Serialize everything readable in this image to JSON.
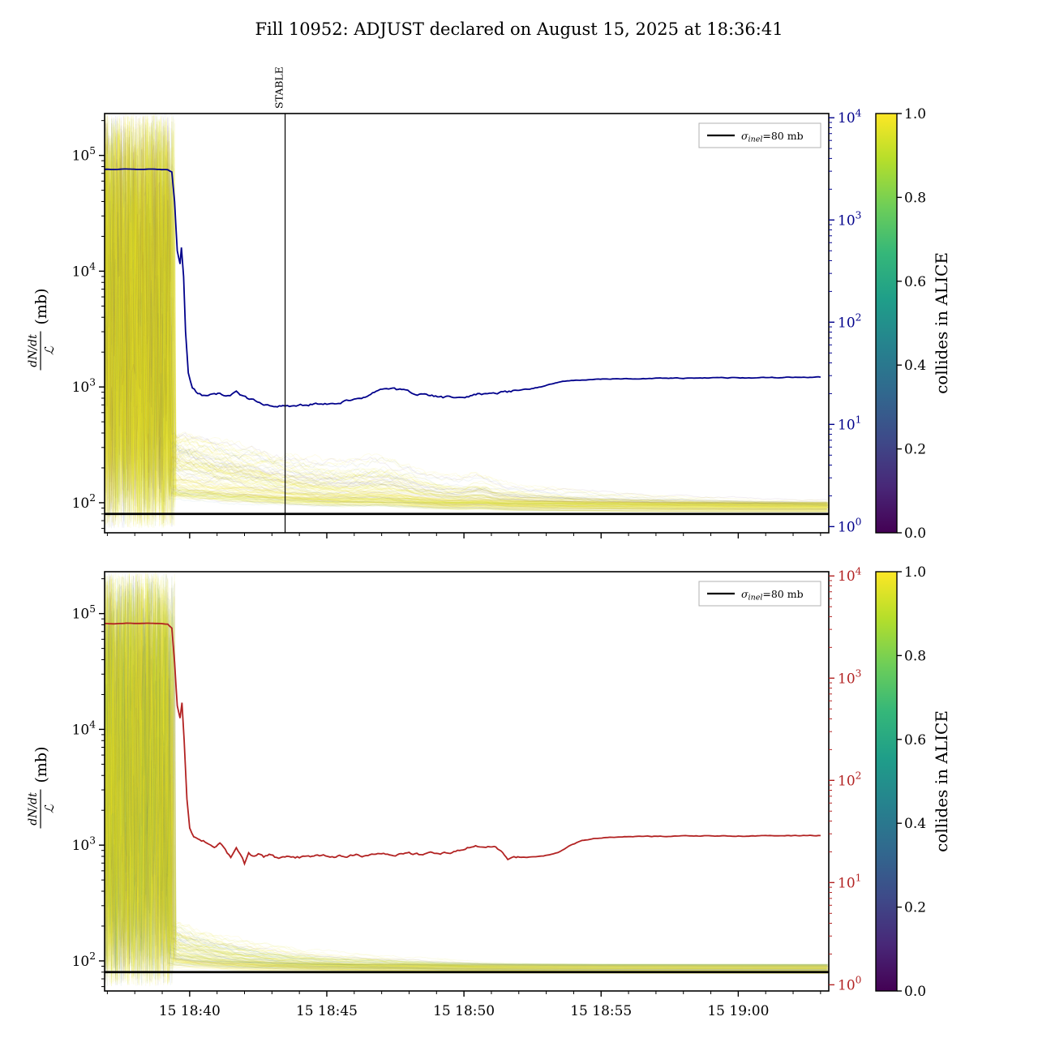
{
  "title": "Fill 10952: ADJUST declared on August 15, 2025 at 18:36:41",
  "chart_data": [
    {
      "id": "top-panel",
      "type": "line",
      "ylabel": {
        "numerator": "dN/dt",
        "denominator": "ℒ",
        "unit": "(mb)"
      },
      "y_axis": {
        "scale": "log",
        "min": 55,
        "max": 230000,
        "tick_exponents": [
          2,
          3,
          4,
          5
        ]
      },
      "right_axis": {
        "scale": "log",
        "min": 0.87,
        "max": 11000,
        "tick_exponents": [
          0,
          1,
          2,
          3,
          4
        ],
        "color": "#00008b"
      },
      "x_axis": {
        "min": 0.9,
        "max": 27.3,
        "major_ticks": [
          {
            "t": 4,
            "label": "15 18:40"
          },
          {
            "t": 9,
            "label": "15 18:45"
          },
          {
            "t": 14,
            "label": "15 18:50"
          },
          {
            "t": 19,
            "label": "15 18:55"
          },
          {
            "t": 24,
            "label": "15 19:00"
          }
        ],
        "minor_step": 1
      },
      "legend": {
        "symbol": "σ",
        "subscript": "inel",
        "text": "=80 mb"
      },
      "sigma_line_mb": 80,
      "stable_marker": {
        "t": 7.48,
        "label": "STABLE"
      },
      "main_line": {
        "color": "#00008b",
        "x": [
          0.9,
          1.3,
          1.7,
          2.1,
          2.5,
          2.9,
          3.2,
          3.35,
          3.45,
          3.55,
          3.65,
          3.7,
          3.78,
          3.85,
          3.95,
          4.1,
          4.3,
          4.6,
          4.9,
          5.1,
          5.4,
          5.7,
          5.9,
          6.1,
          6.4,
          6.7,
          7.0,
          7.4,
          7.8,
          8.2,
          8.6,
          9.0,
          9.5,
          10.0,
          10.4,
          10.8,
          11.1,
          11.4,
          11.8,
          12.1,
          12.5,
          12.9,
          13.3,
          13.7,
          14.1,
          14.5,
          15.0,
          15.5,
          16.0,
          16.4,
          16.8,
          17.2,
          17.6,
          18.0,
          18.6,
          19.2,
          20.0,
          21.0,
          22.0,
          23.0,
          24.0,
          25.0,
          26.0,
          27.0
        ],
        "y": [
          76000,
          75500,
          76500,
          75800,
          76200,
          75600,
          75200,
          72000,
          40000,
          15000,
          11500,
          16000,
          9000,
          3000,
          1300,
          1000,
          880,
          820,
          860,
          880,
          850,
          900,
          830,
          790,
          760,
          720,
          690,
          680,
          690,
          700,
          710,
          720,
          740,
          770,
          820,
          900,
          950,
          960,
          930,
          900,
          860,
          830,
          810,
          820,
          840,
          860,
          880,
          900,
          930,
          960,
          1000,
          1060,
          1110,
          1140,
          1160,
          1170,
          1180,
          1185,
          1190,
          1195,
          1200,
          1205,
          1210,
          1215
        ]
      },
      "bunch_lines": {
        "count": 150,
        "yellow_fraction": 0.8,
        "drop_time": 3.2,
        "pre_log_min": 1.78,
        "pre_log_max": 5.36,
        "post_floor": [
          82,
          100
        ],
        "post_amp_max": 330,
        "tau_min": 2.5,
        "tau_max": 7.5,
        "bumps": [
          {
            "t": 11.2,
            "w": 1.3,
            "a": 0.5
          },
          {
            "t": 14.6,
            "w": 0.55,
            "a": 0.4
          }
        ],
        "seed": 7
      },
      "colorbar": {
        "label": "collides in ALICE",
        "ticks": [
          "0.0",
          "0.2",
          "0.4",
          "0.6",
          "0.8",
          "1.0"
        ],
        "cmap": "viridis"
      }
    },
    {
      "id": "bottom-panel",
      "type": "line",
      "ylabel": {
        "numerator": "dN/dt",
        "denominator": "ℒ",
        "unit": "(mb)"
      },
      "y_axis": {
        "scale": "log",
        "min": 55,
        "max": 230000,
        "tick_exponents": [
          2,
          3,
          4,
          5
        ]
      },
      "right_axis": {
        "scale": "log",
        "min": 0.87,
        "max": 11000,
        "tick_exponents": [
          0,
          1,
          2,
          3,
          4
        ],
        "color": "#b22222"
      },
      "x_axis": {
        "min": 0.9,
        "max": 27.3,
        "major_ticks": [
          {
            "t": 4,
            "label": "15 18:40"
          },
          {
            "t": 9,
            "label": "15 18:45"
          },
          {
            "t": 14,
            "label": "15 18:50"
          },
          {
            "t": 19,
            "label": "15 18:55"
          },
          {
            "t": 24,
            "label": "15 19:00"
          }
        ],
        "minor_step": 1
      },
      "legend": {
        "symbol": "σ",
        "subscript": "inel",
        "text": "=80 mb"
      },
      "sigma_line_mb": 80,
      "main_line": {
        "color": "#b22222",
        "x": [
          0.9,
          1.3,
          1.7,
          2.1,
          2.5,
          2.9,
          3.2,
          3.35,
          3.45,
          3.55,
          3.65,
          3.72,
          3.8,
          3.9,
          4.0,
          4.15,
          4.3,
          4.5,
          4.7,
          4.9,
          5.1,
          5.3,
          5.5,
          5.7,
          5.85,
          6.0,
          6.15,
          6.3,
          6.5,
          6.7,
          6.9,
          7.1,
          7.4,
          7.7,
          8.0,
          8.4,
          8.8,
          9.2,
          9.6,
          10.0,
          10.5,
          11.0,
          11.5,
          12.0,
          12.5,
          13.0,
          13.5,
          13.9,
          14.2,
          14.5,
          14.8,
          15.1,
          15.35,
          15.6,
          15.9,
          16.3,
          16.7,
          17.1,
          17.5,
          17.9,
          18.3,
          18.8,
          19.4,
          20.0,
          21.0,
          22.0,
          23.0,
          24.0,
          25.0,
          26.0,
          27.0
        ],
        "y": [
          82000,
          81500,
          82500,
          82000,
          82800,
          82000,
          81000,
          75000,
          38000,
          16000,
          12500,
          17000,
          8000,
          2500,
          1400,
          1180,
          1120,
          1080,
          1020,
          980,
          1060,
          920,
          780,
          950,
          850,
          700,
          880,
          800,
          840,
          780,
          820,
          790,
          780,
          800,
          790,
          800,
          810,
          800,
          810,
          820,
          810,
          830,
          820,
          840,
          830,
          850,
          870,
          900,
          950,
          970,
          940,
          960,
          900,
          770,
          780,
          790,
          800,
          820,
          880,
          1000,
          1090,
          1140,
          1170,
          1180,
          1190,
          1195,
          1200,
          1200,
          1205,
          1210,
          1210
        ]
      },
      "bunch_lines": {
        "count": 150,
        "yellow_fraction": 0.8,
        "drop_time": 3.2,
        "pre_log_min": 1.78,
        "pre_log_max": 5.36,
        "post_floor": [
          78,
          94
        ],
        "post_amp_max": 140,
        "tau_min": 1.2,
        "tau_max": 4.5,
        "bumps": [
          {
            "t": 11.5,
            "w": 1.8,
            "a": 0.3
          },
          {
            "t": 13.5,
            "w": 1.0,
            "a": 0.2
          }
        ],
        "seed": 13
      },
      "colorbar": {
        "label": "collides in ALICE",
        "ticks": [
          "0.0",
          "0.2",
          "0.4",
          "0.6",
          "0.8",
          "1.0"
        ],
        "cmap": "viridis"
      }
    }
  ]
}
